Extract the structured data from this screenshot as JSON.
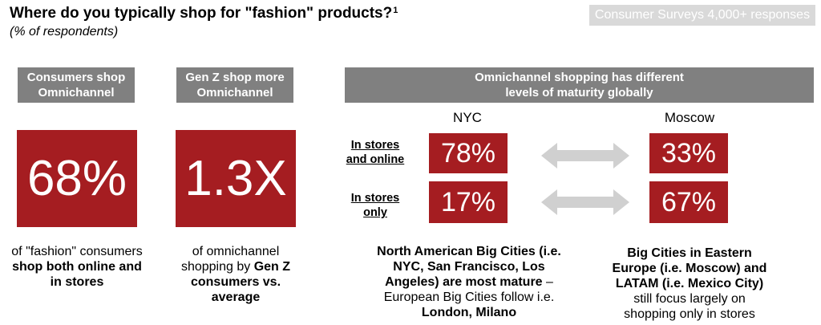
{
  "header": {
    "title": "Where do you typically shop for \"fashion\" products?",
    "footnote": "1",
    "subtitle": "(% of respondents)",
    "source_badge": "Consumer Surveys 4,000+ responses"
  },
  "panel1": {
    "header": [
      "Consumers shop",
      "Omnichannel"
    ],
    "value": "68%",
    "caption_plain": "of \"fashion\" consumers",
    "caption_bold": [
      "shop both online and",
      "in stores"
    ]
  },
  "panel2": {
    "header": [
      "Gen Z shop more",
      "Omnichannel"
    ],
    "value": "1.3X",
    "caption_plain": [
      "of omnichannel",
      "shopping by "
    ],
    "caption_bold_inline": "Gen Z",
    "caption_bold": [
      "consumers vs.",
      "average"
    ]
  },
  "panel3": {
    "header": [
      "Omnichannel shopping has different",
      "levels of maturity globally"
    ],
    "city_left": "NYC",
    "city_right": "Moscow",
    "row1_label": [
      "In stores",
      "and online"
    ],
    "row2_label": [
      "In stores",
      "only"
    ],
    "nyc_row1": "78%",
    "nyc_row2": "17%",
    "moscow_row1": "33%",
    "moscow_row2": "67%",
    "left_caption_bold": [
      "North American Big Cities (i.e.",
      "NYC, San Francisco, Los",
      "Angeles) are most mature"
    ],
    "left_caption_dash": " –",
    "left_caption_plain": "European Big Cities follow i.e.",
    "left_caption_bold_end": "London, Milano",
    "right_caption_bold": [
      "Big Cities in Eastern",
      "Europe (i.e. Moscow) and",
      "LATAM (i.e. Mexico City)"
    ],
    "right_caption_plain": [
      "still focus largely on",
      "shopping only in stores"
    ]
  },
  "colors": {
    "accent_red": "#a51d21",
    "header_gray": "#808080",
    "badge_gray": "#d9d9d9",
    "arrow_gray": "#d0d0d0"
  }
}
